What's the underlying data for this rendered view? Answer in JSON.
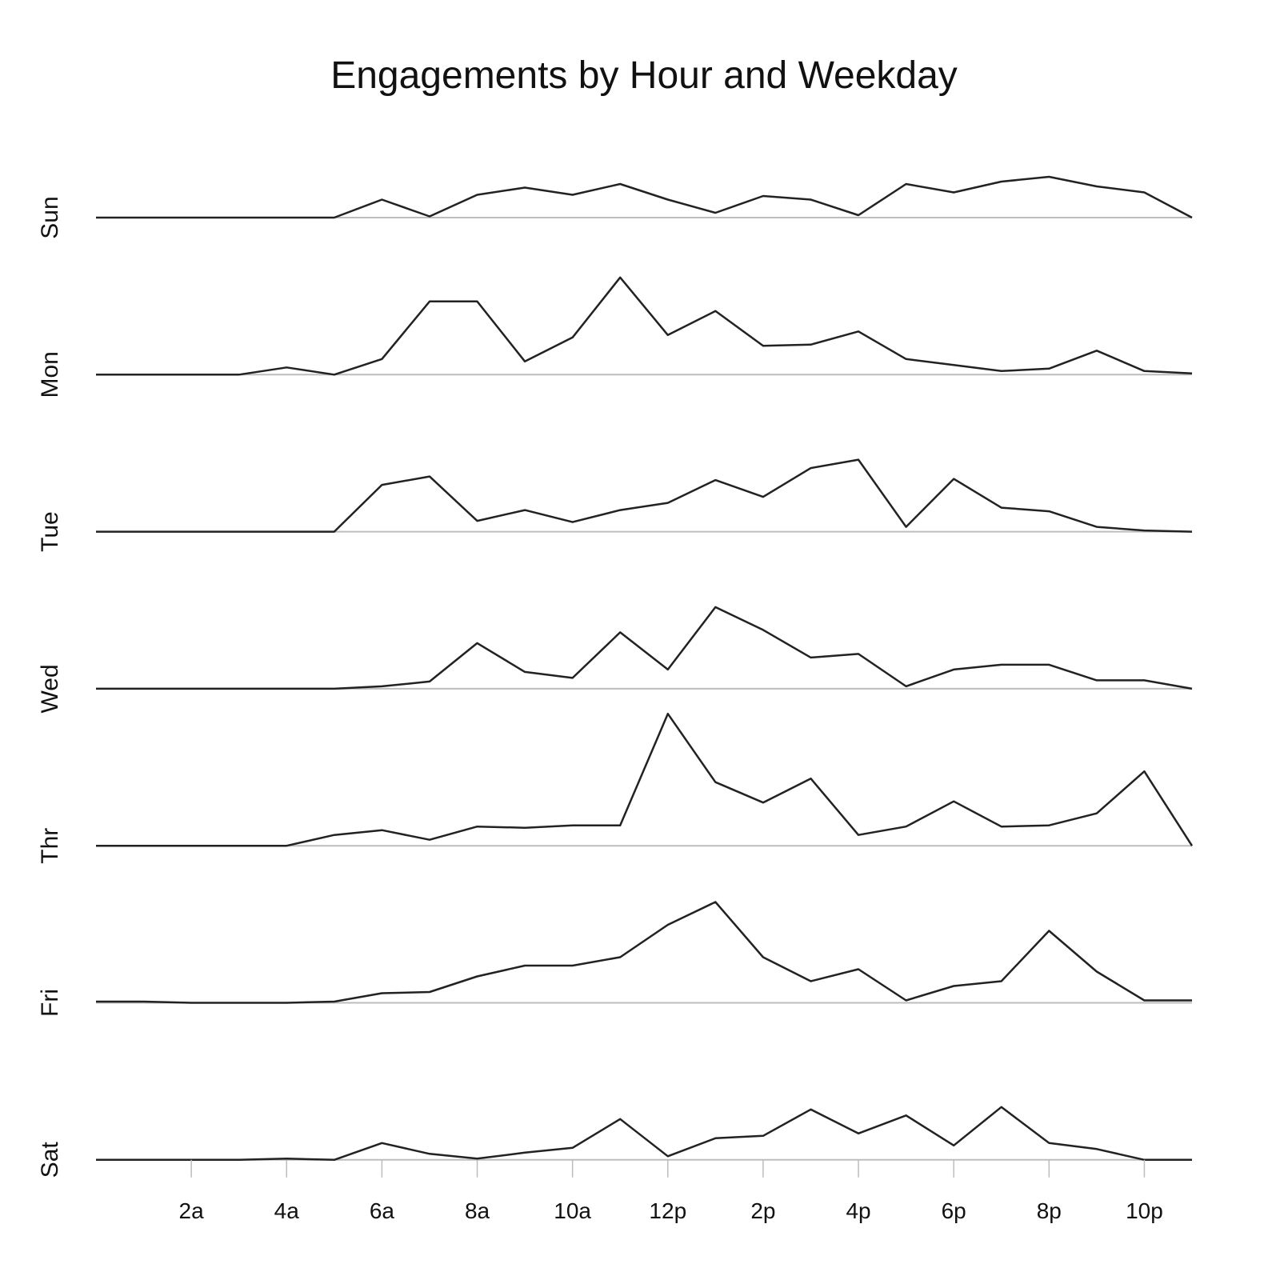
{
  "chart_data": {
    "type": "line",
    "title": "Engagements by Hour and Weekday",
    "x": [
      0,
      1,
      2,
      3,
      4,
      5,
      6,
      7,
      8,
      9,
      10,
      11,
      12,
      13,
      14,
      15,
      16,
      17,
      18,
      19,
      20,
      21,
      22,
      23
    ],
    "x_ticks": [
      {
        "value": 2,
        "label": "2a"
      },
      {
        "value": 4,
        "label": "4a"
      },
      {
        "value": 6,
        "label": "6a"
      },
      {
        "value": 8,
        "label": "8a"
      },
      {
        "value": 10,
        "label": "10a"
      },
      {
        "value": 12,
        "label": "12p"
      },
      {
        "value": 14,
        "label": "2p"
      },
      {
        "value": 16,
        "label": "4p"
      },
      {
        "value": 18,
        "label": "6p"
      },
      {
        "value": 20,
        "label": "8p"
      },
      {
        "value": 22,
        "label": "10p"
      }
    ],
    "xlim": [
      0,
      23
    ],
    "ylim": [
      0,
      110
    ],
    "grid": false,
    "panels": [
      {
        "label": "Sun",
        "values": [
          0,
          0,
          0,
          0,
          0,
          0,
          15,
          1,
          19,
          25,
          19,
          28,
          15,
          4,
          18,
          15,
          2,
          28,
          21,
          30,
          34,
          26,
          21,
          0
        ]
      },
      {
        "label": "Mon",
        "values": [
          0,
          0,
          0,
          0,
          6,
          0,
          13,
          61,
          61,
          11,
          31,
          81,
          33,
          53,
          24,
          25,
          36,
          13,
          8,
          3,
          5,
          20,
          3,
          1
        ]
      },
      {
        "label": "Tue",
        "values": [
          0,
          0,
          0,
          0,
          0,
          0,
          39,
          46,
          9,
          18,
          8,
          18,
          24,
          43,
          29,
          53,
          60,
          4,
          44,
          20,
          17,
          4,
          1,
          0
        ]
      },
      {
        "label": "Wed",
        "values": [
          0,
          0,
          0,
          0,
          0,
          0,
          2,
          6,
          38,
          14,
          9,
          47,
          16,
          68,
          49,
          26,
          29,
          2,
          16,
          20,
          20,
          7,
          7,
          0
        ]
      },
      {
        "label": "Thr",
        "values": [
          0,
          0,
          0,
          0,
          0,
          9,
          13,
          5,
          16,
          15,
          17,
          17,
          110,
          53,
          36,
          56,
          9,
          16,
          37,
          16,
          17,
          27,
          62,
          0
        ]
      },
      {
        "label": "Fri",
        "values": [
          1,
          1,
          0,
          0,
          0,
          1,
          8,
          9,
          22,
          31,
          31,
          38,
          65,
          84,
          38,
          18,
          28,
          2,
          14,
          18,
          60,
          26,
          2,
          2
        ]
      },
      {
        "label": "Sat",
        "values": [
          0,
          0,
          0,
          0,
          1,
          0,
          14,
          5,
          1,
          6,
          10,
          34,
          3,
          18,
          20,
          42,
          22,
          37,
          12,
          44,
          14,
          9,
          0,
          0
        ]
      }
    ]
  }
}
